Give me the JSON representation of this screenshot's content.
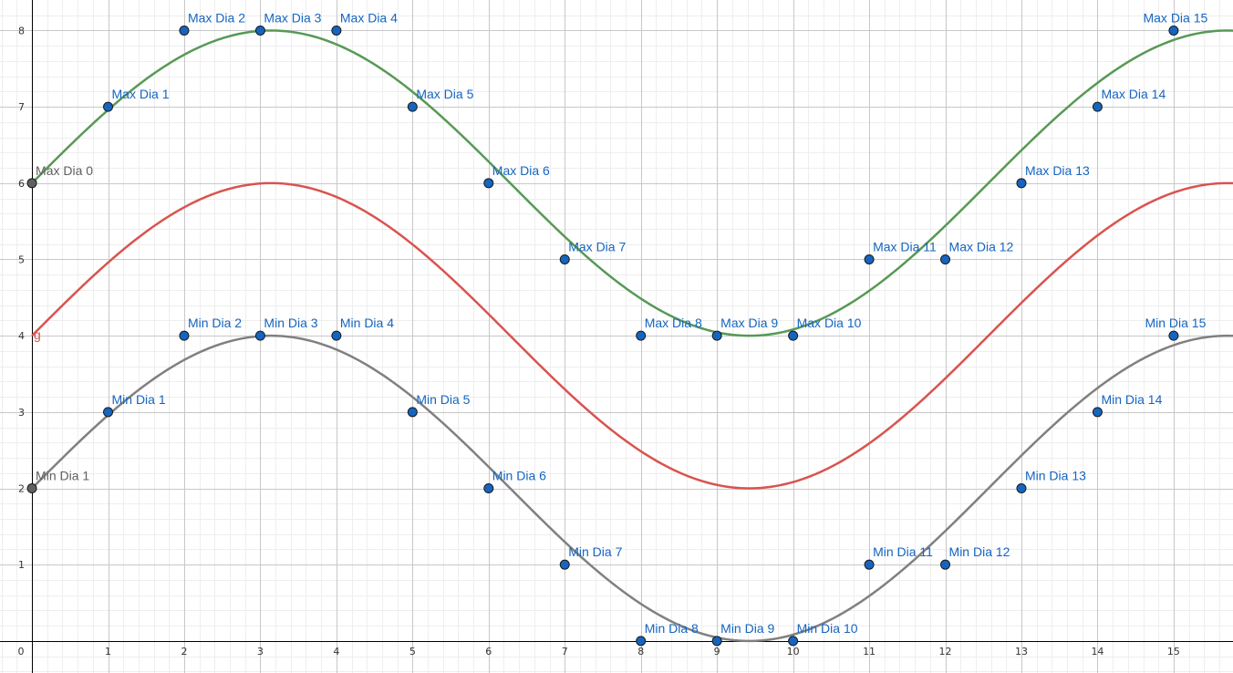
{
  "chart_data": {
    "type": "scatter",
    "x_ticks": [
      "0",
      "1",
      "2",
      "3",
      "4",
      "5",
      "6",
      "7",
      "8",
      "9",
      "10",
      "11",
      "12",
      "13",
      "14",
      "15"
    ],
    "y_ticks": [
      "1",
      "2",
      "3",
      "4",
      "5",
      "6",
      "7",
      "8"
    ],
    "xlim": [
      -0.42,
      15.78
    ],
    "ylim": [
      -0.42,
      8.4
    ],
    "grid": true,
    "minor_grid": true,
    "curves": [
      {
        "label": "",
        "color": "#579955",
        "function": "6 + 2*sin(x/2)",
        "label_offset": [
          -4,
          -6
        ]
      },
      {
        "label": "g",
        "color": "#d9534f",
        "function": "4 + 2*sin(x/2)",
        "label_offset": [
          0,
          4
        ]
      },
      {
        "label": "",
        "color": "#808080",
        "function": "2 + 2*sin(x/2)",
        "label_offset": [
          -5,
          -8
        ]
      }
    ],
    "series": [
      {
        "name": "Max",
        "points": [
          {
            "label": "Max Dia 0",
            "x": 0,
            "y": 6,
            "style": "grey"
          },
          {
            "label": "Max Dia 1",
            "x": 1,
            "y": 7
          },
          {
            "label": "Max Dia 2",
            "x": 2,
            "y": 8
          },
          {
            "label": "Max Dia 3",
            "x": 3,
            "y": 8
          },
          {
            "label": "Max Dia 4",
            "x": 4,
            "y": 8
          },
          {
            "label": "Max Dia 5",
            "x": 5,
            "y": 7
          },
          {
            "label": "Max Dia 6",
            "x": 6,
            "y": 6
          },
          {
            "label": "Max Dia 7",
            "x": 7,
            "y": 5
          },
          {
            "label": "Max Dia 8",
            "x": 8,
            "y": 4
          },
          {
            "label": "Max Dia 9",
            "x": 9,
            "y": 4
          },
          {
            "label": "Max Dia 10",
            "x": 10,
            "y": 4
          },
          {
            "label": "Max Dia 11",
            "x": 11,
            "y": 5
          },
          {
            "label": "Max Dia 12",
            "x": 12,
            "y": 5
          },
          {
            "label": "Max Dia 13",
            "x": 13,
            "y": 6
          },
          {
            "label": "Max Dia 14",
            "x": 14,
            "y": 7
          },
          {
            "label": "Max Dia 15",
            "x": 15,
            "y": 8,
            "anchor": "end"
          }
        ]
      },
      {
        "name": "Min",
        "points": [
          {
            "label": "Min Dia 1",
            "x": 0,
            "y": 2,
            "style": "grey"
          },
          {
            "label": "Min Dia 1",
            "x": 1,
            "y": 3
          },
          {
            "label": "Min Dia 2",
            "x": 2,
            "y": 4
          },
          {
            "label": "Min Dia 3",
            "x": 3,
            "y": 4
          },
          {
            "label": "Min Dia 4",
            "x": 4,
            "y": 4
          },
          {
            "label": "Min Dia 5",
            "x": 5,
            "y": 3
          },
          {
            "label": "Min Dia 6",
            "x": 6,
            "y": 2
          },
          {
            "label": "Min Dia 7",
            "x": 7,
            "y": 1
          },
          {
            "label": "Min Dia 8",
            "x": 8,
            "y": 0
          },
          {
            "label": "Min Dia 9",
            "x": 9,
            "y": 0
          },
          {
            "label": "Min Dia 10",
            "x": 10,
            "y": 0
          },
          {
            "label": "Min Dia 11",
            "x": 11,
            "y": 1
          },
          {
            "label": "Min Dia 12",
            "x": 12,
            "y": 1
          },
          {
            "label": "Min Dia 13",
            "x": 13,
            "y": 2
          },
          {
            "label": "Min Dia 14",
            "x": 14,
            "y": 3
          },
          {
            "label": "Min Dia 15",
            "x": 15,
            "y": 4,
            "anchor": "end"
          }
        ]
      }
    ],
    "colors": {
      "point_fill": "#1565c0",
      "point_label": "#1565c0",
      "grey_point_fill": "#606060",
      "grey_point_label": "#606060",
      "major_grid": "#c8c8c8",
      "minor_grid": "#eeeeee",
      "axis": "#000000"
    }
  }
}
